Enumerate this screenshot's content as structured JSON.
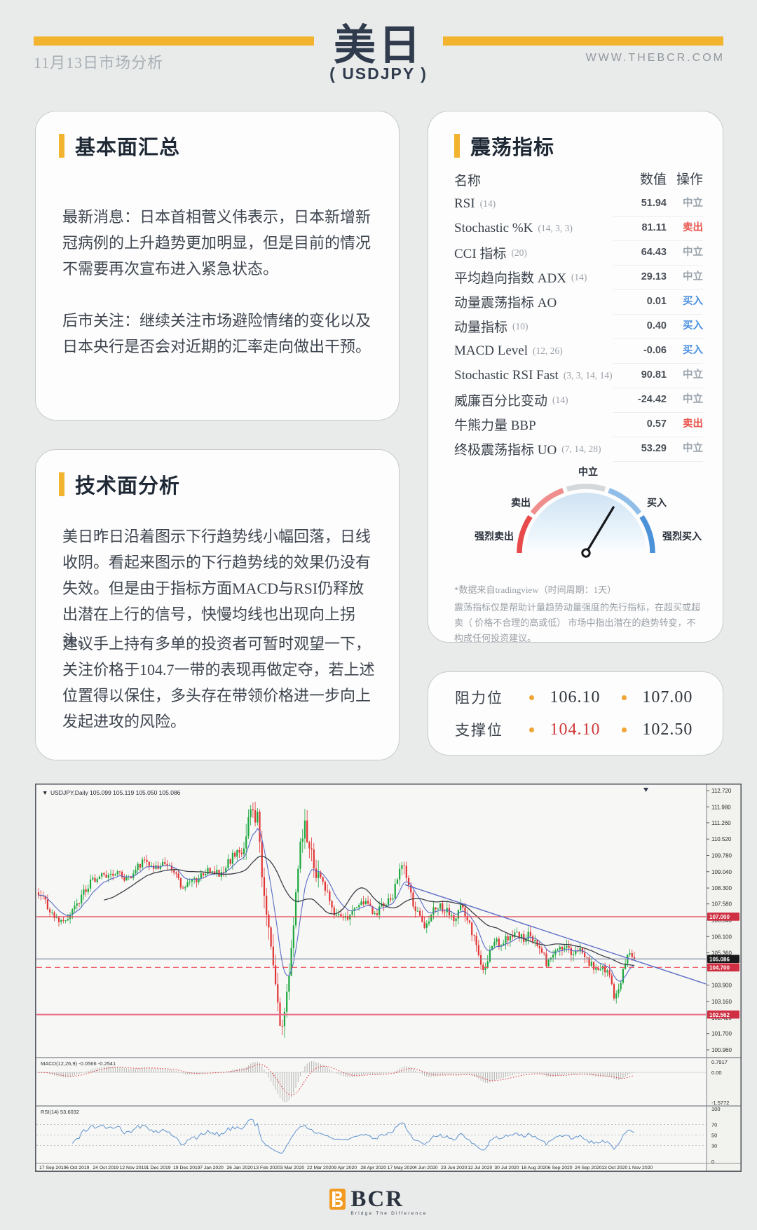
{
  "page": {
    "bg": "#e9ebea",
    "accent": "#f2b32e",
    "navy": "#303c4e"
  },
  "header": {
    "date_label": "11月13日市场分析",
    "title": "美日",
    "subtitle": "( USDJPY )",
    "website": "WWW.THEBCR.COM"
  },
  "fundamental": {
    "heading": "基本面汇总",
    "paragraphs": [
      "最新消息：日本首相菅义伟表示，日本新增新冠病例的上升趋势更加明显，但是目前的情况不需要再次宣布进入紧急状态。",
      "后市关注：继续关注市场避险情绪的变化以及日本央行是否会对近期的汇率走向做出干预。"
    ]
  },
  "technical": {
    "heading": "技术面分析",
    "paragraphs": [
      "美日昨日沿着图示下行趋势线小幅回落，日线收阴。看起来图示的下行趋势线的效果仍没有失效。但是由于指标方面MACD与RSI仍释放出潜在上行的信号，快慢均线也出现向上拐头。",
      "建议手上持有多单的投资者可暂时观望一下，关注价格于104.7一带的表现再做定夺，若上述位置得以保住，多头存在带领价格进一步向上发起进攻的风险。"
    ]
  },
  "oscillator": {
    "heading": "震荡指标",
    "columns": {
      "name": "名称",
      "value": "数值",
      "action": "操作"
    },
    "rows": [
      {
        "name": "RSI",
        "params": "(14)",
        "value": "51.94",
        "action": "中立",
        "action_type": "neutral"
      },
      {
        "name": "Stochastic %K",
        "params": "(14, 3, 3)",
        "value": "81.11",
        "action": "卖出",
        "action_type": "sell"
      },
      {
        "name": "CCI 指标",
        "params": "(20)",
        "value": "64.43",
        "action": "中立",
        "action_type": "neutral"
      },
      {
        "name": "平均趋向指数 ADX",
        "params": "(14)",
        "value": "29.13",
        "action": "中立",
        "action_type": "neutral"
      },
      {
        "name": "动量震荡指标 AO",
        "params": "",
        "value": "0.01",
        "action": "买入",
        "action_type": "buy"
      },
      {
        "name": "动量指标",
        "params": "(10)",
        "value": "0.40",
        "action": "买入",
        "action_type": "buy"
      },
      {
        "name": "MACD Level",
        "params": "(12, 26)",
        "value": "-0.06",
        "action": "买入",
        "action_type": "buy"
      },
      {
        "name": "Stochastic RSI Fast",
        "params": "(3, 3, 14, 14)",
        "value": "90.81",
        "action": "中立",
        "action_type": "neutral"
      },
      {
        "name": "威廉百分比变动",
        "params": "(14)",
        "value": "-24.42",
        "action": "中立",
        "action_type": "neutral"
      },
      {
        "name": "牛熊力量 BBP",
        "params": "",
        "value": "0.57",
        "action": "卖出",
        "action_type": "sell"
      },
      {
        "name": "终极震荡指标 UO",
        "params": "(7, 14, 28)",
        "value": "53.29",
        "action": "中立",
        "action_type": "neutral"
      }
    ],
    "action_colors": {
      "neutral": "#9aa3ac",
      "sell": "#e8554e",
      "buy": "#4a90e2"
    },
    "gauge": {
      "labels": {
        "strong_sell": "强烈卖出",
        "sell": "卖出",
        "neutral": "中立",
        "buy": "买入",
        "strong_buy": "强烈买入"
      },
      "segment_colors": [
        "#e84a4c",
        "#ef8e8c",
        "#d4d8db",
        "#90bee8",
        "#4b92d9"
      ],
      "needle_deg": 31
    },
    "footnotes": [
      "*数据来自tradingview（时间周期：1天）",
      "震荡指标仅是帮助计量趋势动量强度的先行指标，在超买或超卖（ 价格不合理的高或低） 市场中指出潜在的趋势转变，不构成任何投资建议。"
    ]
  },
  "levels": {
    "resistance_label": "阻力位",
    "support_label": "支撑位",
    "resistance": [
      "106.10",
      "107.00"
    ],
    "support": [
      "104.10",
      "102.50"
    ],
    "bullet_color": "#f0a637",
    "support_highlight": "#cf3a3a"
  },
  "chart_data": {
    "type": "candlestick",
    "symbol_dropdown": "▼",
    "title": "USDJPY,Daily  105.099 105.119 105.050 105.086",
    "x_labels": [
      "17 Sep 2019",
      "6 Oct 2019",
      "24 Oct 2019",
      "12 Nov 2019",
      "1 Dec 2019",
      "19 Dec 2019",
      "7 Jan 2020",
      "26 Jan 2020",
      "13 Feb 2020",
      "3 Mar 2020",
      "22 Mar 2020",
      "9 Apr 2020",
      "28 Apr 2020",
      "17 May 2020",
      "4 Jun 2020",
      "23 Jun 2020",
      "12 Jul 2020",
      "30 Jul 2020",
      "18 Aug 2020",
      "6 Sep 2020",
      "24 Sep 2020",
      "13 Oct 2020",
      "1 Nov 2020"
    ],
    "y_ticks": [
      "112.720",
      "111.980",
      "111.260",
      "110.520",
      "109.780",
      "109.040",
      "108.300",
      "107.580",
      "106.840",
      "106.100",
      "105.360",
      "103.900",
      "103.160",
      "102.420",
      "101.700",
      "100.960"
    ],
    "levels": [
      {
        "price": 107.0,
        "label": "107.000",
        "style": "solid",
        "color": "#e3404e",
        "label_bg": "#cf2f42"
      },
      {
        "price": 105.086,
        "label": "105.086",
        "style": "solid",
        "color": "#7c8aa0",
        "label_bg": "#18181a"
      },
      {
        "price": 104.7,
        "label": "104.700",
        "style": "dashed",
        "color": "#ee4b58",
        "label_bg": "#cf2f42"
      },
      {
        "price": 102.562,
        "label": "102.562",
        "style": "solid",
        "color": "#ef6d88",
        "label_bg": "#cf2f42"
      }
    ],
    "trendline": {
      "from_t": 0.615,
      "from_price": 108.45,
      "to_t": 1.12,
      "to_price": 103.95,
      "color": "#5a6cc6"
    },
    "anchors": [
      [
        0,
        108.1
      ],
      [
        0.022,
        107.2
      ],
      [
        0.043,
        106.7
      ],
      [
        0.06,
        107.4
      ],
      [
        0.087,
        108.6
      ],
      [
        0.11,
        108.9
      ],
      [
        0.13,
        109.0
      ],
      [
        0.15,
        108.7
      ],
      [
        0.174,
        109.5
      ],
      [
        0.195,
        109.2
      ],
      [
        0.217,
        109.45
      ],
      [
        0.24,
        108.4
      ],
      [
        0.261,
        108.6
      ],
      [
        0.282,
        109.1
      ],
      [
        0.304,
        108.95
      ],
      [
        0.325,
        109.7
      ],
      [
        0.345,
        110.0
      ],
      [
        0.358,
        112.1
      ],
      [
        0.368,
        111.3
      ],
      [
        0.378,
        108.3
      ],
      [
        0.39,
        105.9
      ],
      [
        0.4,
        103.0
      ],
      [
        0.408,
        101.6
      ],
      [
        0.418,
        103.6
      ],
      [
        0.43,
        107.2
      ],
      [
        0.44,
        110.6
      ],
      [
        0.447,
        111.2
      ],
      [
        0.455,
        110.2
      ],
      [
        0.465,
        108.8
      ],
      [
        0.478,
        108.6
      ],
      [
        0.492,
        107.4
      ],
      [
        0.505,
        107.0
      ],
      [
        0.522,
        106.95
      ],
      [
        0.538,
        107.5
      ],
      [
        0.552,
        107.6
      ],
      [
        0.565,
        107.2
      ],
      [
        0.58,
        107.6
      ],
      [
        0.595,
        107.9
      ],
      [
        0.606,
        109.3
      ],
      [
        0.612,
        109.5
      ],
      [
        0.62,
        108.8
      ],
      [
        0.63,
        107.6
      ],
      [
        0.645,
        106.6
      ],
      [
        0.655,
        106.9
      ],
      [
        0.67,
        107.5
      ],
      [
        0.685,
        107.3
      ],
      [
        0.696,
        106.9
      ],
      [
        0.71,
        107.4
      ],
      [
        0.725,
        106.5
      ],
      [
        0.739,
        105.2
      ],
      [
        0.748,
        104.6
      ],
      [
        0.762,
        105.8
      ],
      [
        0.783,
        105.9
      ],
      [
        0.8,
        106.4
      ],
      [
        0.815,
        106.0
      ],
      [
        0.826,
        106.2
      ],
      [
        0.84,
        105.6
      ],
      [
        0.853,
        104.9
      ],
      [
        0.866,
        105.5
      ],
      [
        0.88,
        105.7
      ],
      [
        0.895,
        105.4
      ],
      [
        0.913,
        105.5
      ],
      [
        0.925,
        104.9
      ],
      [
        0.94,
        104.55
      ],
      [
        0.955,
        104.6
      ],
      [
        0.966,
        103.4
      ],
      [
        0.976,
        103.9
      ],
      [
        0.988,
        105.2
      ],
      [
        1.0,
        105.09
      ]
    ],
    "noise_zones": [
      {
        "from": 0.0,
        "to": 0.3,
        "factor": 0.8
      },
      {
        "from": 0.345,
        "to": 0.47,
        "factor": 2.0
      },
      {
        "from": 0.595,
        "to": 0.632,
        "factor": 1.4
      }
    ],
    "candle_count": 265,
    "up_color": "#1ca83e",
    "down_color": "#e13434",
    "ma_fast": {
      "period": 10,
      "color": "#5a6cc6"
    },
    "ma_slow": {
      "period": 30,
      "color": "#3b4047"
    },
    "macd": {
      "label": "MACD(12,26,9) -0.0566 -0.2541",
      "scale": [
        "0.7917",
        "0.00",
        "-1.5772"
      ],
      "hist_color": "#b4b4b4",
      "signal_color": "#e03535"
    },
    "rsi": {
      "label": "RSI(14) 53.6032",
      "scale": [
        "100",
        "70",
        "50",
        "30",
        "0"
      ],
      "gridlines": [
        70,
        50,
        30
      ],
      "color": "#5f93cf"
    },
    "last_price": 105.086
  },
  "footer": {
    "logo_text": "BCR",
    "tagline": "Bridge The Difference"
  }
}
